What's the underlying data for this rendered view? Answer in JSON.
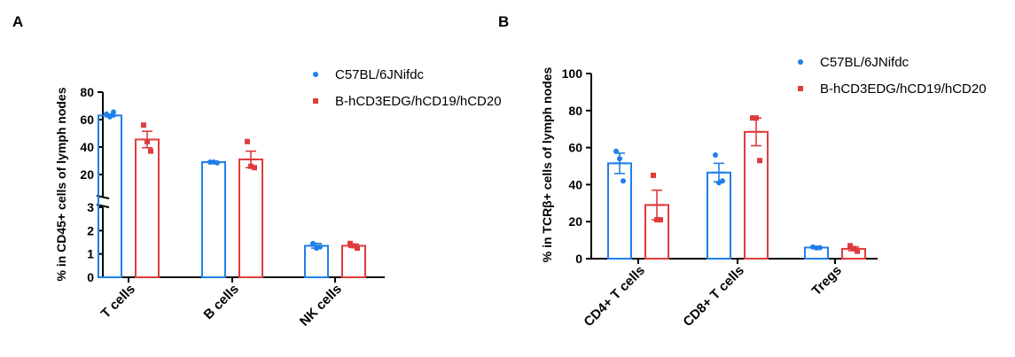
{
  "colors": {
    "series1": "#1f7fe8",
    "series2": "#e03c3c",
    "axis": "#000000"
  },
  "chart_data": [
    {
      "panel": "A",
      "type": "bar",
      "broken_axis": true,
      "ylabel": "% in CD45+ cells of lymph nodes",
      "ylim_lower": [
        0,
        3
      ],
      "ylim_upper": [
        20,
        80
      ],
      "yticks_lower": [
        0,
        1,
        2,
        3
      ],
      "yticks_upper": [
        20,
        40,
        60,
        80
      ],
      "categories": [
        "T cells",
        "B cells",
        "NK cells"
      ],
      "legend_position": "top-right",
      "series": [
        {
          "name": "C57BL/6JNifdc",
          "values": [
            63,
            29,
            1.35
          ],
          "errors": [
            1.0,
            0.5,
            0.1
          ],
          "points": [
            [
              64,
              62,
              65.5
            ],
            [
              29,
              29,
              28.5
            ],
            [
              1.45,
              1.25,
              1.3
            ]
          ]
        },
        {
          "name": "B-hCD3EDG/hCD19/hCD20",
          "values": [
            45.5,
            31,
            1.35
          ],
          "errors": [
            6.0,
            6.0,
            0.07
          ],
          "points": [
            [
              56,
              44,
              37
            ],
            [
              44,
              26,
              25
            ],
            [
              1.45,
              1.35,
              1.25
            ]
          ]
        }
      ]
    },
    {
      "panel": "B",
      "type": "bar",
      "ylabel": "% in TCRβ+ cells of lymph nodes",
      "ylim": [
        0,
        100
      ],
      "yticks": [
        0,
        20,
        40,
        60,
        80,
        100
      ],
      "categories": [
        "CD4+ T cells",
        "CD8+ T cells",
        "Tregs"
      ],
      "legend_position": "top-right",
      "series": [
        {
          "name": "C57BL/6JNifdc",
          "values": [
            51.5,
            46.5,
            6.0
          ],
          "errors": [
            5.5,
            5.0,
            0.3
          ],
          "points": [
            [
              58,
              54,
              42
            ],
            [
              56,
              41,
              42
            ],
            [
              6.3,
              5.8,
              5.9
            ]
          ]
        },
        {
          "name": "B-hCD3EDG/hCD19/hCD20",
          "values": [
            29.0,
            68.5,
            5.3
          ],
          "errors": [
            8.0,
            7.5,
            1.0
          ],
          "points": [
            [
              45,
              21,
              21
            ],
            [
              76,
              76,
              53
            ],
            [
              7.0,
              5.5,
              4.0
            ]
          ]
        }
      ]
    }
  ]
}
